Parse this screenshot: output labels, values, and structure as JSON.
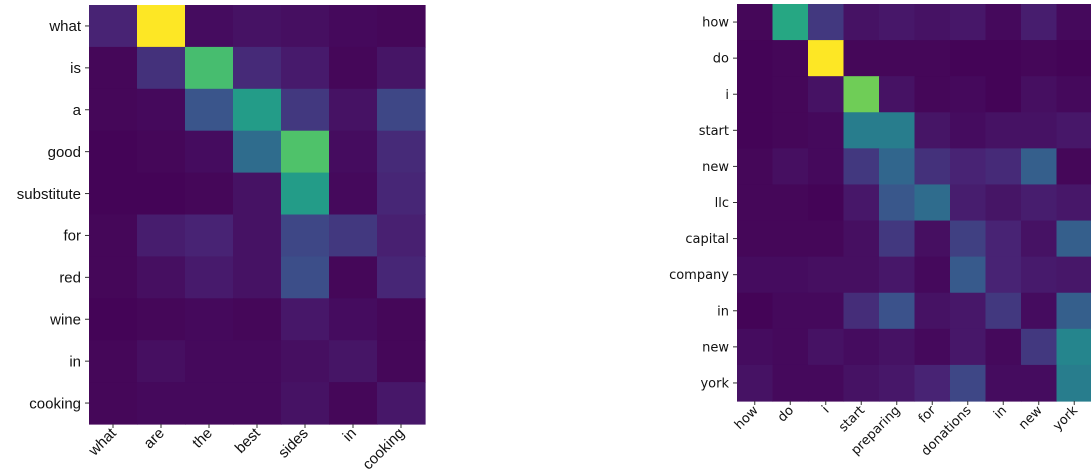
{
  "chart_data": [
    {
      "type": "heatmap",
      "colormap": "viridis",
      "grid": false,
      "title": "",
      "rows": [
        "what",
        "is",
        "a",
        "good",
        "substitute",
        "for",
        "red",
        "wine",
        "in",
        "cooking"
      ],
      "cols": [
        "what",
        "are",
        "the",
        "best",
        "sides",
        "in",
        "cooking"
      ],
      "values": [
        [
          0.12,
          1.0,
          0.04,
          0.06,
          0.05,
          0.03,
          0.02
        ],
        [
          0.02,
          0.16,
          0.7,
          0.14,
          0.09,
          0.02,
          0.07
        ],
        [
          0.02,
          0.03,
          0.26,
          0.55,
          0.18,
          0.06,
          0.22
        ],
        [
          0.01,
          0.02,
          0.04,
          0.35,
          0.72,
          0.04,
          0.14
        ],
        [
          0.01,
          0.01,
          0.02,
          0.06,
          0.55,
          0.03,
          0.13
        ],
        [
          0.02,
          0.1,
          0.12,
          0.06,
          0.22,
          0.18,
          0.11
        ],
        [
          0.02,
          0.05,
          0.09,
          0.06,
          0.24,
          0.02,
          0.13
        ],
        [
          0.01,
          0.02,
          0.03,
          0.02,
          0.08,
          0.04,
          0.02
        ],
        [
          0.02,
          0.05,
          0.03,
          0.03,
          0.05,
          0.07,
          0.02
        ],
        [
          0.02,
          0.03,
          0.03,
          0.03,
          0.06,
          0.02,
          0.08
        ]
      ]
    },
    {
      "type": "heatmap",
      "colormap": "viridis",
      "grid": false,
      "title": "",
      "rows": [
        "how",
        "do",
        "i",
        "start",
        "new",
        "llc",
        "capital",
        "company",
        "in",
        "new",
        "york"
      ],
      "cols": [
        "how",
        "do",
        "i",
        "start",
        "preparing",
        "for",
        "donations",
        "in",
        "new",
        "york"
      ],
      "values": [
        [
          0.02,
          0.6,
          0.18,
          0.06,
          0.08,
          0.06,
          0.08,
          0.03,
          0.1,
          0.03
        ],
        [
          0.01,
          0.02,
          1.0,
          0.02,
          0.02,
          0.02,
          0.01,
          0.01,
          0.02,
          0.01
        ],
        [
          0.01,
          0.02,
          0.06,
          0.78,
          0.06,
          0.02,
          0.03,
          0.01,
          0.05,
          0.03
        ],
        [
          0.01,
          0.02,
          0.03,
          0.42,
          0.42,
          0.07,
          0.04,
          0.06,
          0.06,
          0.08
        ],
        [
          0.02,
          0.05,
          0.03,
          0.18,
          0.33,
          0.16,
          0.12,
          0.14,
          0.3,
          0.02
        ],
        [
          0.02,
          0.02,
          0.01,
          0.08,
          0.27,
          0.35,
          0.1,
          0.07,
          0.1,
          0.08
        ],
        [
          0.02,
          0.02,
          0.02,
          0.05,
          0.18,
          0.05,
          0.2,
          0.12,
          0.06,
          0.3
        ],
        [
          0.04,
          0.04,
          0.05,
          0.05,
          0.08,
          0.03,
          0.28,
          0.12,
          0.09,
          0.08
        ],
        [
          0.01,
          0.03,
          0.03,
          0.15,
          0.25,
          0.06,
          0.08,
          0.18,
          0.04,
          0.3
        ],
        [
          0.04,
          0.03,
          0.06,
          0.04,
          0.06,
          0.03,
          0.08,
          0.03,
          0.18,
          0.45
        ],
        [
          0.06,
          0.03,
          0.03,
          0.06,
          0.08,
          0.12,
          0.22,
          0.04,
          0.04,
          0.42
        ]
      ]
    }
  ]
}
